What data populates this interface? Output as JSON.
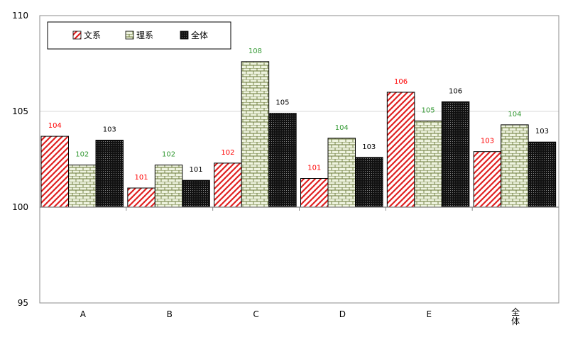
{
  "chart_data": {
    "type": "bar",
    "categories": [
      "A",
      "B",
      "C",
      "D",
      "E",
      "全体"
    ],
    "series": [
      {
        "name": "文系",
        "values": [
          103.7,
          101.0,
          102.3,
          101.5,
          106.0,
          102.9
        ],
        "labels": [
          "104",
          "101",
          "102",
          "101",
          "106",
          "103"
        ],
        "color": "#e02020",
        "label_color": "#ff0000",
        "pattern": "diagonal"
      },
      {
        "name": "理系",
        "values": [
          102.2,
          102.2,
          107.6,
          103.6,
          104.5,
          104.3
        ],
        "labels": [
          "102",
          "102",
          "108",
          "104",
          "105",
          "104"
        ],
        "color": "#e8f0d8",
        "label_color": "#339933",
        "pattern": "brick"
      },
      {
        "name": "全体",
        "values": [
          103.5,
          101.4,
          104.9,
          102.6,
          105.5,
          103.4
        ],
        "labels": [
          "103",
          "101",
          "105",
          "103",
          "106",
          "103"
        ],
        "color": "#111111",
        "label_color": "#000000",
        "pattern": "dots"
      }
    ],
    "baseline": 100,
    "ylim": [
      95,
      110
    ],
    "yticks": [
      95,
      100,
      105,
      110
    ],
    "ytick_labels": [
      "95",
      "100",
      "105",
      "110"
    ],
    "grid": true,
    "legend_position": "top-left",
    "title": "",
    "xlabel": "",
    "ylabel": ""
  }
}
